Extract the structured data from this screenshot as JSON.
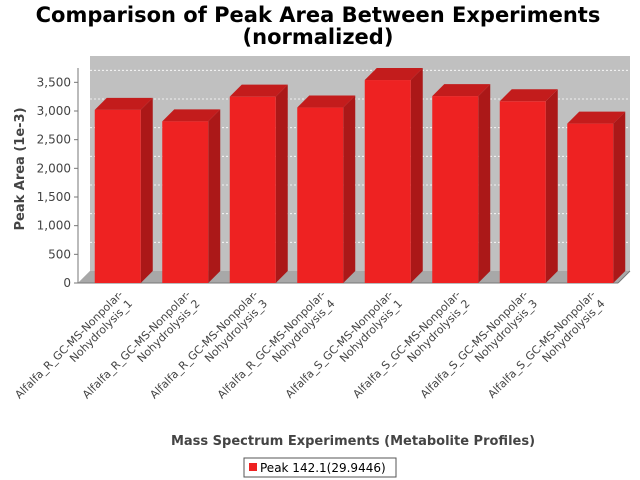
{
  "chart_data": {
    "type": "bar",
    "title_line1": "Comparison of Peak Area Between Experiments",
    "title_line2": "(normalized)",
    "xlabel": "Mass Spectrum Experiments (Metabolite Profiles)",
    "ylabel": "Peak Area (1e-3)",
    "ylim": [
      0,
      3750
    ],
    "yticks": [
      0,
      500,
      1000,
      1500,
      2000,
      2500,
      3000,
      3500
    ],
    "ytick_labels": [
      "0",
      "500",
      "1,000",
      "1,500",
      "2,000",
      "2,500",
      "3,000",
      "3,500"
    ],
    "grid": true,
    "legend_position": "bottom",
    "categories": [
      {
        "line1": "Alfalfa_R_GC-MS-Nonpolar-",
        "line2": "Nohydrolysis_1"
      },
      {
        "line1": "Alfalfa_R_GC-MS-Nonpolar-",
        "line2": "Nohydrolysis_2"
      },
      {
        "line1": "Alfalfa_R_GC-MS-Nonpolar-",
        "line2": "Nohydrolysis_3"
      },
      {
        "line1": "Alfalfa_R_GC-MS-Nonpolar-",
        "line2": "Nohydrolysis_4"
      },
      {
        "line1": "Alfalfa_S_GC-MS-Nonpolar-",
        "line2": "Nohydrolysis_1"
      },
      {
        "line1": "Alfalfa_S_GC-MS-Nonpolar-",
        "line2": "Nohydrolysis_2"
      },
      {
        "line1": "Alfalfa_S_GC-MS-Nonpolar-",
        "line2": "Nohydrolysis_3"
      },
      {
        "line1": "Alfalfa_S_GC-MS-Nonpolar-",
        "line2": "Nohydrolysis_4"
      }
    ],
    "series": [
      {
        "name": "Peak 142.1(29.9446)",
        "color": "#ee2222",
        "values": [
          3020,
          2820,
          3250,
          3060,
          3540,
          3260,
          3170,
          2780
        ]
      }
    ]
  }
}
